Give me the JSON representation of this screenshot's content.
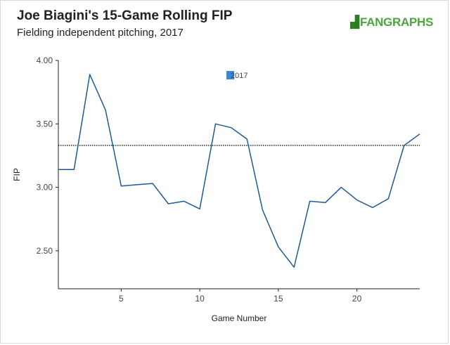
{
  "header": {
    "title": "Joe Biagini's 15-Game Rolling FIP",
    "subtitle": "Fielding independent pitching, 2017",
    "brand": "FANGRAPHS"
  },
  "chart_data": {
    "type": "line",
    "xlabel": "Game Number",
    "ylabel": "FIP",
    "xlim": [
      1,
      24
    ],
    "ylim": [
      2.2,
      4.0
    ],
    "x_ticks": [
      5,
      10,
      15,
      20
    ],
    "y_ticks": [
      2.5,
      3.0,
      3.5,
      4.0
    ],
    "y_tick_labels": [
      "2.50",
      "3.00",
      "3.50",
      "4.00"
    ],
    "grid": false,
    "legend": {
      "position": "top-center",
      "entries": [
        "2017"
      ]
    },
    "series": [
      {
        "name": "2017",
        "color": "#1f5a96",
        "x": [
          1,
          2,
          3,
          4,
          5,
          6,
          7,
          8,
          9,
          10,
          11,
          12,
          13,
          14,
          15,
          16,
          17,
          18,
          19,
          20,
          21,
          22,
          23,
          24
        ],
        "y": [
          3.14,
          3.14,
          3.89,
          3.61,
          3.01,
          3.02,
          3.03,
          2.87,
          2.89,
          2.83,
          3.5,
          3.47,
          3.38,
          2.82,
          2.53,
          2.37,
          2.89,
          2.88,
          3.0,
          2.9,
          2.84,
          2.91,
          3.33,
          3.42
        ]
      }
    ],
    "reference_line": {
      "y": 3.33,
      "style": "dotted",
      "color": "#000000"
    },
    "colors": {
      "line": "#1f5a96",
      "legend_box": "#3a86d9",
      "axis": "#222222"
    }
  }
}
